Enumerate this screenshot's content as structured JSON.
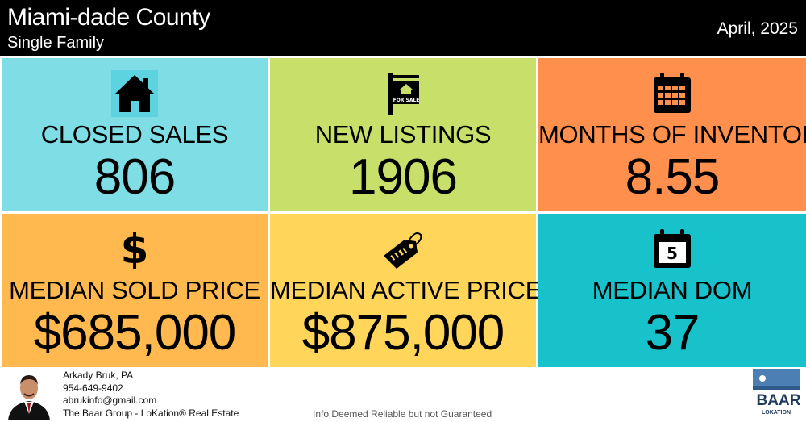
{
  "header": {
    "title": "Miami-dade County",
    "subtitle": "Single Family",
    "date": "April, 2025"
  },
  "tiles": [
    {
      "label": "CLOSED SALES",
      "value": "806",
      "icon": "house-icon",
      "color": "#7fdde6"
    },
    {
      "label": "NEW LISTINGS",
      "value": "1906",
      "icon": "for-sale-sign-icon",
      "icon_text": "FOR SALE",
      "color": "#c8e06a"
    },
    {
      "label": "MONTHS OF INVENTORY",
      "value": "8.55",
      "icon": "calendar-icon",
      "color": "#ff8f4c"
    },
    {
      "label": "MEDIAN SOLD PRICE",
      "value": "$685,000",
      "icon": "dollar-icon",
      "icon_text": "$",
      "color": "#ffb94e"
    },
    {
      "label": "MEDIAN ACTIVE PRICE",
      "value": "$875,000",
      "icon": "price-tag-icon",
      "color": "#ffd55a"
    },
    {
      "label": "MEDIAN DOM",
      "value": "37",
      "icon": "calendar-day-icon",
      "icon_text": "5",
      "color": "#17c2cb"
    }
  ],
  "footer": {
    "agent_name": "Arkady Bruk, PA",
    "phone": "954-649-9402",
    "email": "abrukinfo@gmail.com",
    "company": "The Baar Group - LoKation® Real Estate",
    "disclaimer": "Info Deemed Reliable but not Guaranteed",
    "logo_text": "BAAR",
    "logo_subtext": "LOKATION"
  }
}
